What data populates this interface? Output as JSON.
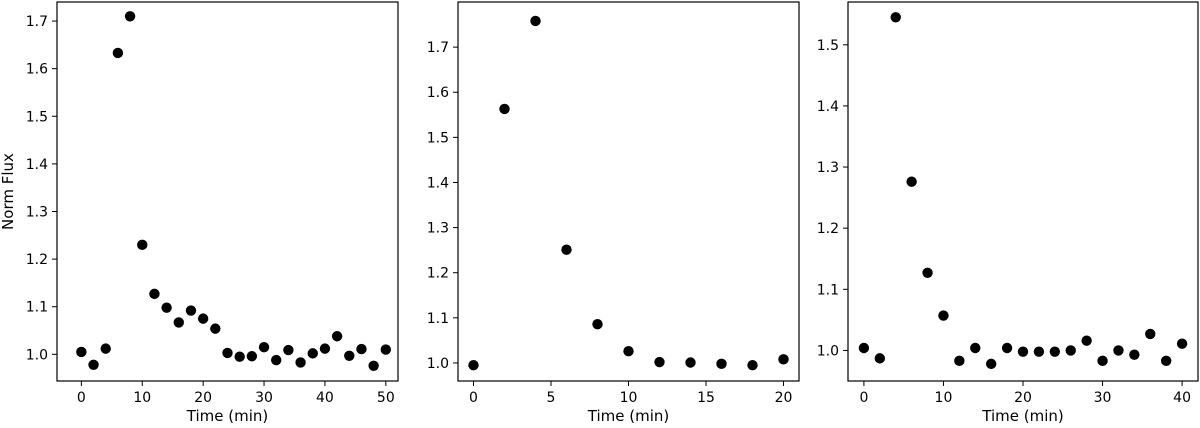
{
  "chart_data": [
    {
      "type": "scatter",
      "xlabel": "Time (min)",
      "ylabel": "Norm Flux",
      "xlim": [
        -4,
        52
      ],
      "ylim": [
        0.944,
        1.74
      ],
      "xticks": [
        0,
        10,
        20,
        30,
        40,
        50
      ],
      "yticks": [
        1.0,
        1.1,
        1.2,
        1.3,
        1.4,
        1.5,
        1.6,
        1.7
      ],
      "marker_color": "#000000",
      "series": [
        {
          "x": [
            0,
            2,
            4,
            6,
            8,
            10,
            12,
            14,
            16,
            18,
            20,
            22,
            24,
            26,
            28,
            30,
            32,
            34,
            36,
            38,
            40,
            42,
            44,
            46,
            48,
            50
          ],
          "y": [
            1.005,
            0.978,
            1.012,
            1.633,
            1.71,
            1.23,
            1.127,
            1.098,
            1.067,
            1.092,
            1.075,
            1.054,
            1.003,
            0.995,
            0.996,
            1.015,
            0.988,
            1.009,
            0.983,
            1.002,
            1.012,
            1.038,
            0.997,
            1.011,
            0.976,
            1.01
          ]
        }
      ]
    },
    {
      "type": "scatter",
      "xlabel": "Time (min)",
      "ylabel": "",
      "xlim": [
        -1.0,
        21.0
      ],
      "ylim": [
        0.96,
        1.8
      ],
      "xticks": [
        0,
        5,
        10,
        15,
        20
      ],
      "yticks": [
        1.0,
        1.1,
        1.2,
        1.3,
        1.4,
        1.5,
        1.6,
        1.7
      ],
      "marker_color": "#000000",
      "series": [
        {
          "x": [
            0,
            2,
            4,
            6,
            8,
            10,
            12,
            14,
            16,
            18,
            20
          ],
          "y": [
            0.995,
            1.563,
            1.758,
            1.251,
            1.086,
            1.026,
            1.002,
            1.001,
            0.998,
            0.995,
            1.008
          ]
        }
      ]
    },
    {
      "type": "scatter",
      "xlabel": "Time (min)",
      "ylabel": "",
      "xlim": [
        -2.0,
        42.0
      ],
      "ylim": [
        0.95,
        1.57
      ],
      "xticks": [
        0,
        10,
        20,
        30,
        40
      ],
      "yticks": [
        1.0,
        1.1,
        1.2,
        1.3,
        1.4,
        1.5
      ],
      "marker_color": "#000000",
      "series": [
        {
          "x": [
            0,
            2,
            4,
            6,
            8,
            10,
            12,
            14,
            16,
            18,
            20,
            22,
            24,
            26,
            28,
            30,
            32,
            34,
            36,
            38,
            40
          ],
          "y": [
            1.004,
            0.987,
            1.545,
            1.276,
            1.127,
            1.057,
            0.983,
            1.004,
            0.978,
            1.004,
            0.998,
            0.998,
            0.998,
            1.0,
            1.016,
            0.983,
            1.0,
            0.993,
            1.027,
            0.983,
            1.011
          ]
        }
      ]
    }
  ]
}
